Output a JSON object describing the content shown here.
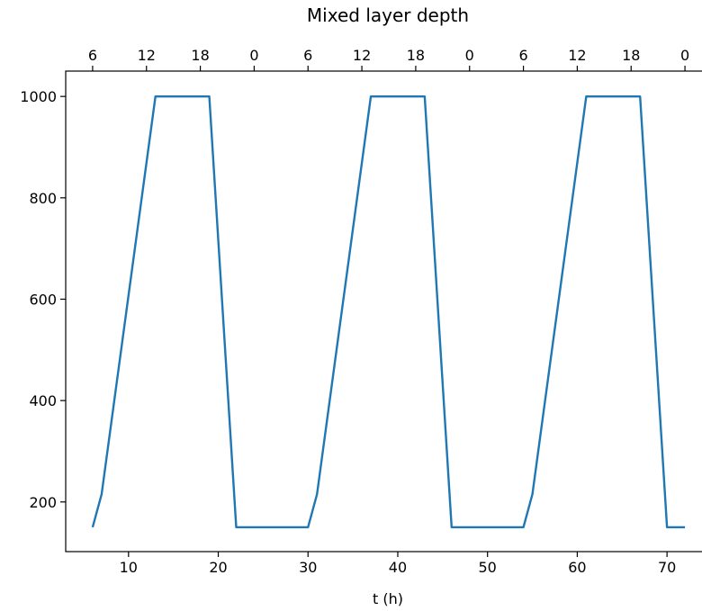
{
  "chart_data": {
    "type": "line",
    "title": "Mixed layer depth",
    "xlabel": "t (h)",
    "ylabel": "",
    "xlim": [
      3.0,
      74.7
    ],
    "ylim": [
      102,
      1050
    ],
    "xticks": [
      10,
      20,
      30,
      40,
      50,
      60,
      70
    ],
    "xtick_labels": [
      "10",
      "20",
      "30",
      "40",
      "50",
      "60",
      "70"
    ],
    "yticks": [
      200,
      400,
      600,
      800,
      1000
    ],
    "ytick_labels": [
      "200",
      "400",
      "600",
      "800",
      "1000"
    ],
    "top_axis": {
      "ticks": [
        6,
        12,
        18,
        24,
        30,
        36,
        42,
        48,
        54,
        60,
        66,
        72
      ],
      "tick_labels": [
        "6",
        "12",
        "18",
        "0",
        "6",
        "12",
        "18",
        "0",
        "6",
        "12",
        "18",
        "0"
      ]
    },
    "grid": false,
    "series": [
      {
        "color": "#1f77b4",
        "x": [
          6,
          7,
          13,
          19,
          22,
          30,
          31,
          37,
          43,
          46,
          54,
          55,
          61,
          67,
          70,
          72
        ],
        "y": [
          150,
          215,
          1000,
          1000,
          150,
          150,
          215,
          1000,
          1000,
          150,
          150,
          215,
          1000,
          1000,
          150,
          150
        ]
      }
    ]
  }
}
